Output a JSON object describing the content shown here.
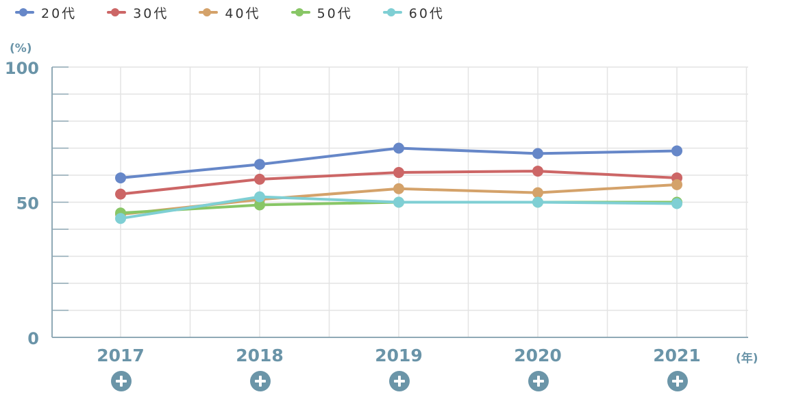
{
  "legend": {
    "items": [
      {
        "label": "20代",
        "color": "#6687c8"
      },
      {
        "label": "30代",
        "color": "#cc6666"
      },
      {
        "label": "40代",
        "color": "#d4a26a"
      },
      {
        "label": "50代",
        "color": "#88c666"
      },
      {
        "label": "60代",
        "color": "#7fcfd4"
      }
    ]
  },
  "axes": {
    "y_unit": "(%)",
    "x_unit": "(年)"
  },
  "expand_icon": "plus-circle-icon",
  "chart_data": {
    "type": "line",
    "x": [
      "2017",
      "2018",
      "2019",
      "2020",
      "2021"
    ],
    "y_ticks": [
      "0",
      "50",
      "100"
    ],
    "ylim": [
      0,
      100
    ],
    "grid": true,
    "legend_position": "top-left",
    "series": [
      {
        "name": "20代",
        "color": "#6687c8",
        "values": [
          59,
          64,
          70,
          68,
          69
        ]
      },
      {
        "name": "30代",
        "color": "#cc6666",
        "values": [
          53,
          58.5,
          61,
          61.5,
          59
        ]
      },
      {
        "name": "40代",
        "color": "#d4a26a",
        "values": [
          45.5,
          51,
          55,
          53.5,
          56.5
        ]
      },
      {
        "name": "50代",
        "color": "#88c666",
        "values": [
          46,
          49,
          50,
          50,
          50
        ]
      },
      {
        "name": "60代",
        "color": "#7fcfd4",
        "values": [
          44,
          52,
          50,
          50,
          49.5
        ]
      }
    ]
  }
}
